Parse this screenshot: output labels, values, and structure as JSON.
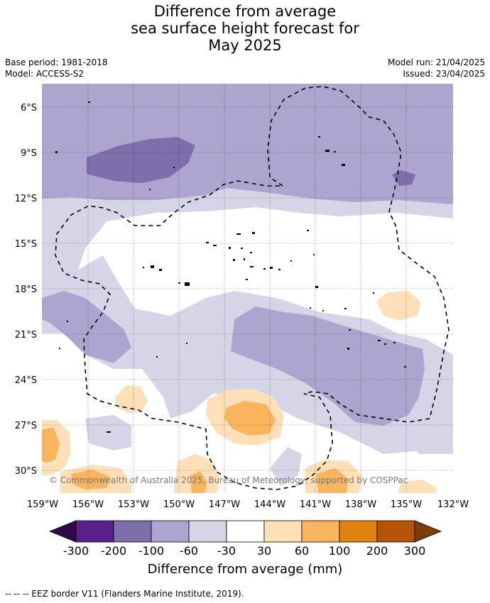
{
  "title": [
    "Difference from average",
    "sea surface height forecast for",
    "May 2025"
  ],
  "base_period": "Base period: 1981-2018",
  "model": "Model: ACCESS-S2",
  "model_run": "Model run: 21/04/2025",
  "issued": "Issued: 23/04/2025",
  "copyright": "© Commonwealth of Australia 2025, Bureau of Meteorology, supported by COSPPac",
  "lat_labels": [
    "6°S",
    "9°S",
    "12°S",
    "15°S",
    "18°S",
    "21°S",
    "24°S",
    "27°S",
    "30°S"
  ],
  "lon_labels": [
    "159°W",
    "156°W",
    "153°W",
    "150°W",
    "147°W",
    "144°W",
    "141°W",
    "138°W",
    "135°W",
    "132°W"
  ],
  "colorbar": {
    "label": "Difference from average (mm)",
    "ticks": [
      "-300",
      "-200",
      "-100",
      "-60",
      "-30",
      "30",
      "60",
      "100",
      "200",
      "300"
    ],
    "colors": [
      "#2e0a4a",
      "#5a1f88",
      "#7d6eac",
      "#ada5cf",
      "#d6d5e8",
      "#ffffff",
      "#fee0b8",
      "#f9b55e",
      "#e0820f",
      "#b35407",
      "#7f3b08"
    ]
  },
  "footnote": "--  --  -- EEZ border V11 (Flanders Marine Institute, 2019)."
}
